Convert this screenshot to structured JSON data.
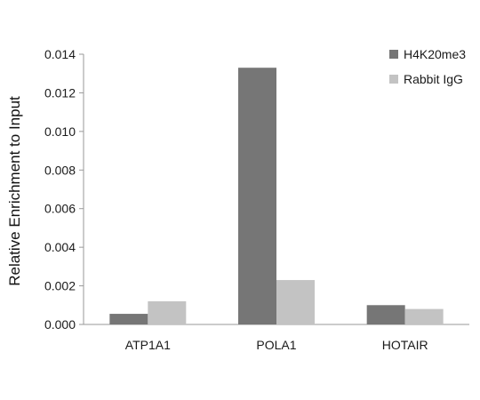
{
  "chart_data": {
    "type": "bar",
    "title": "",
    "xlabel": "",
    "ylabel": "Relative Enrichment to Input",
    "categories": [
      "ATP1A1",
      "POLA1",
      "HOTAIR"
    ],
    "series": [
      {
        "name": "H4K20me3",
        "color": "#767676",
        "values": [
          0.00055,
          0.0133,
          0.001
        ]
      },
      {
        "name": "Rabbit IgG",
        "color": "#c3c3c3",
        "values": [
          0.0012,
          0.0023,
          0.0008
        ]
      }
    ],
    "ylim": [
      0,
      0.014
    ],
    "yticks": [
      "0.000",
      "0.002",
      "0.004",
      "0.006",
      "0.008",
      "0.010",
      "0.012",
      "0.014"
    ],
    "grid": false,
    "legend_position": "top-right"
  }
}
